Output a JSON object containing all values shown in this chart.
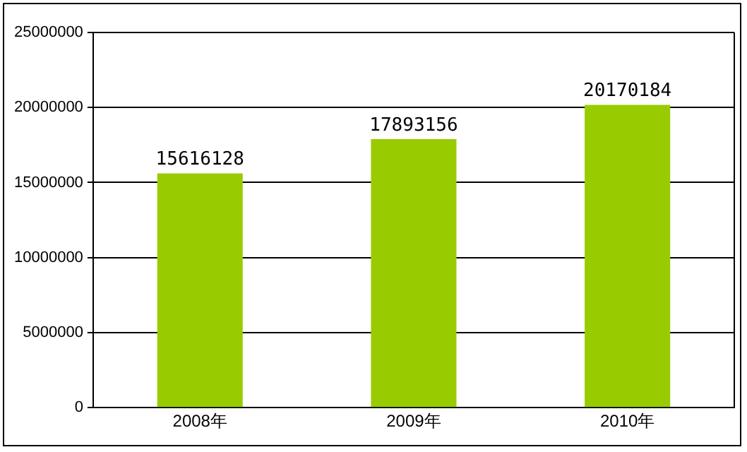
{
  "chart_data": {
    "type": "bar",
    "categories": [
      "2008年",
      "2009年",
      "2010年"
    ],
    "values": [
      15616128,
      17893156,
      20170184
    ],
    "color": "#99cc00",
    "ylim": [
      0,
      25000000
    ],
    "yticks": [
      0,
      5000000,
      10000000,
      15000000,
      20000000,
      25000000
    ],
    "grid": "y",
    "data_labels": true,
    "legend": false
  }
}
